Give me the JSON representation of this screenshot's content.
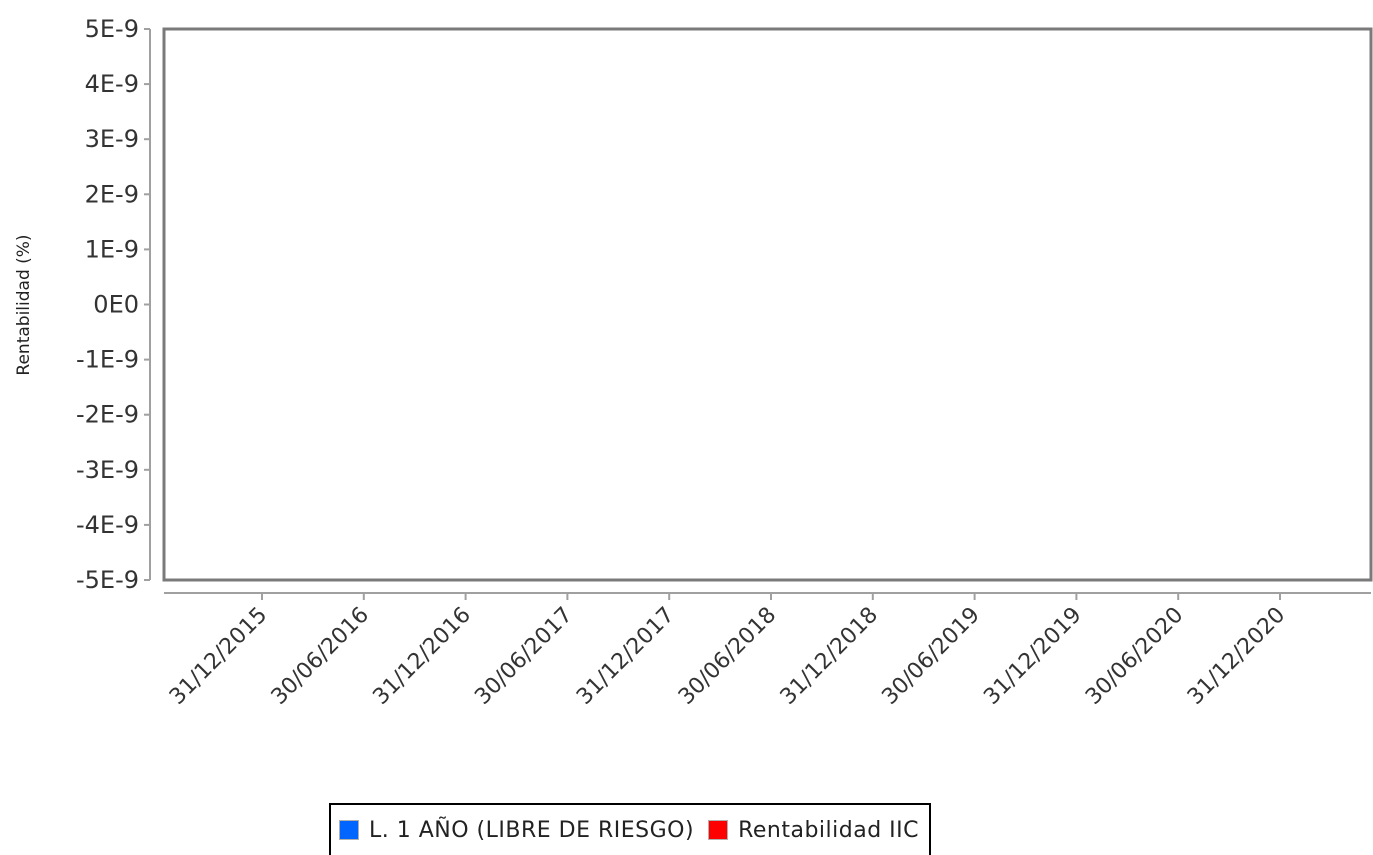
{
  "chart_data": {
    "type": "line",
    "title": "",
    "xlabel": "",
    "ylabel": "Rentabilidad (%)",
    "ylim": [
      -5e-09,
      5e-09
    ],
    "y_ticks": [
      5e-09,
      4e-09,
      3e-09,
      2e-09,
      1e-09,
      0,
      -1e-09,
      -2e-09,
      -3e-09,
      -4e-09,
      -5e-09
    ],
    "y_tick_labels": [
      "5E-9",
      "4E-9",
      "3E-9",
      "2E-9",
      "1E-9",
      "0E0",
      "-1E-9",
      "-2E-9",
      "-3E-9",
      "-4E-9",
      "-5E-9"
    ],
    "x_tick_labels": [
      "31/12/2015",
      "30/06/2016",
      "31/12/2016",
      "30/06/2017",
      "31/12/2017",
      "30/06/2018",
      "31/12/2018",
      "30/06/2019",
      "31/12/2019",
      "30/06/2020",
      "31/12/2020"
    ],
    "grid": false,
    "legend_position": "bottom",
    "series": [
      {
        "name": "L. 1 AÑO (LIBRE DE RIESGO)",
        "color": "#0066ff",
        "values": []
      },
      {
        "name": "Rentabilidad IIC",
        "color": "#ff0000",
        "values": []
      }
    ]
  }
}
